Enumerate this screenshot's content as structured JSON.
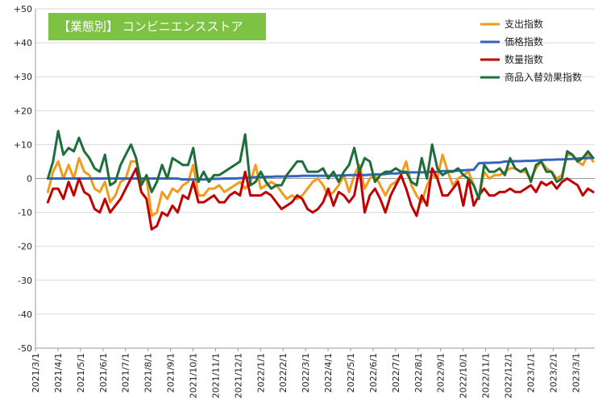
{
  "chart_data": {
    "type": "line",
    "title": "【業態別】 コンビニエンスストア",
    "ylim": [
      -50,
      50
    ],
    "y_ticks": [
      "+50",
      "+40",
      "+30",
      "+20",
      "+10",
      "0",
      "-10",
      "-20",
      "-30",
      "-40",
      "-50"
    ],
    "x_ticks": [
      "2021/3/1",
      "2021/4/1",
      "2021/5/1",
      "2021/6/1",
      "2021/7/1",
      "2021/8/1",
      "2021/9/1",
      "2021/10/1",
      "2021/11/1",
      "2021/12/1",
      "2022/1/1",
      "2022/2/1",
      "2022/3/1",
      "2022/4/1",
      "2022/5/1",
      "2022/6/1",
      "2022/7/1",
      "2022/8/1",
      "2022/9/1",
      "2022/10/1",
      "2022/11/1",
      "2022/12/1",
      "2023/1/1",
      "2023/2/1",
      "2023/3/1"
    ],
    "legend_position": "top-right",
    "series": [
      {
        "name": "支出指数",
        "color": "#f39a1c",
        "values": [
          -4,
          2,
          5,
          0,
          4,
          0,
          6,
          2,
          1,
          -3,
          -4,
          -1,
          -7,
          -5,
          -1,
          0,
          5,
          5,
          -1,
          0,
          -11,
          -10,
          -4,
          -6,
          -3,
          -4,
          -2,
          -1,
          4,
          -5,
          -5,
          -3,
          -3,
          -2,
          -4,
          -3,
          -2,
          -1,
          -3,
          -1,
          4,
          -3,
          -2,
          -1,
          -2,
          -4,
          -6,
          -5,
          -6,
          -5,
          -3,
          -1,
          0,
          -2,
          -5,
          -4,
          -2,
          1,
          -4,
          1,
          4,
          -3,
          0,
          1,
          -2,
          -5,
          -2,
          -1,
          1,
          5,
          -2,
          -5,
          -7,
          -2,
          1,
          0,
          7,
          2,
          -2,
          0,
          1,
          2,
          -2,
          -6,
          2,
          0,
          1,
          1,
          2,
          3,
          3,
          2,
          2,
          0,
          3,
          5,
          3,
          2,
          0,
          1,
          7,
          7,
          5,
          4,
          7,
          5
        ]
      },
      {
        "name": "価格指数",
        "color": "#3464c0",
        "values": [
          0,
          0,
          0,
          0,
          0,
          0,
          0,
          0,
          0,
          0,
          0,
          0,
          0,
          0,
          0,
          0,
          0,
          0,
          0,
          0,
          0,
          0,
          0,
          0,
          0,
          0,
          -0.3,
          -0.3,
          -0.3,
          -0.3,
          -0.3,
          -0.2,
          -0.1,
          -0.1,
          0,
          0,
          0,
          0.1,
          0.2,
          0.3,
          0.4,
          0.4,
          0.5,
          0.5,
          0.6,
          0.6,
          0.6,
          0.7,
          0.7,
          0.8,
          0.8,
          0.8,
          0.8,
          0.8,
          0.8,
          0.8,
          0.9,
          0.9,
          1,
          1,
          1,
          1,
          1.1,
          1.2,
          1.2,
          1.3,
          1.5,
          1.5,
          1.6,
          1.7,
          1.8,
          1.8,
          1.8,
          1.9,
          2,
          2,
          2.2,
          2.2,
          2.2,
          2.3,
          2.4,
          2.5,
          2.6,
          4.5,
          4.6,
          4.6,
          4.7,
          4.7,
          5,
          5,
          5.1,
          5.1,
          5.2,
          5.2,
          5.3,
          5.4,
          5.5,
          5.5,
          5.6,
          5.6,
          5.7,
          5.8,
          5.9,
          6,
          6,
          6.1
        ]
      },
      {
        "name": "数量指数",
        "color": "#c00000",
        "values": [
          -7,
          -3,
          -3,
          -6,
          -1,
          -5,
          0,
          -4,
          -5,
          -9,
          -10,
          -6,
          -10,
          -8,
          -6,
          -3,
          0,
          3,
          -4,
          -6,
          -15,
          -14,
          -10,
          -11,
          -8,
          -10,
          -5,
          -6,
          -1,
          -7,
          -7,
          -6,
          -5,
          -7,
          -7,
          -5,
          -4,
          -5,
          2,
          -5,
          -5,
          -5,
          -4,
          -5,
          -7,
          -9,
          -8,
          -7,
          -5,
          -6,
          -9,
          -10,
          -9,
          -7,
          -3,
          -8,
          -4,
          -5,
          -7,
          -5,
          3,
          -10,
          -5,
          -3,
          -6,
          -10,
          -5,
          -2,
          1,
          -3,
          -8,
          -11,
          -5,
          -8,
          3,
          0,
          -5,
          -5,
          -3,
          -1,
          -8,
          0,
          -8,
          -5,
          -3,
          -5,
          -5,
          -4,
          -4,
          -3,
          -4,
          -4,
          -3,
          -2,
          -4,
          -1,
          -2,
          -1,
          -3,
          -1,
          0,
          -1,
          -2,
          -5,
          -3,
          -4
        ]
      },
      {
        "name": "商品入替効果指数",
        "color": "#1d6e3a",
        "values": [
          0,
          5,
          14,
          7,
          9,
          8,
          12,
          8,
          6,
          3,
          2,
          7,
          -2,
          -1,
          4,
          7,
          10,
          6,
          -2,
          1,
          -4,
          -1,
          4,
          0,
          6,
          5,
          4,
          4,
          9,
          -1,
          2,
          -1,
          1,
          1,
          2,
          3,
          4,
          5,
          13,
          -2,
          -1,
          2,
          -1,
          -3,
          -2,
          -2,
          1,
          3,
          5,
          5,
          2,
          2,
          2,
          3,
          0,
          2,
          -1,
          2,
          4,
          9,
          2,
          6,
          5,
          -1,
          1,
          2,
          2,
          3,
          2,
          2,
          -1,
          -2,
          6,
          0,
          10,
          3,
          1,
          2,
          2,
          3,
          1,
          0,
          -2,
          -6,
          4,
          2,
          2,
          3,
          1,
          6,
          3,
          2,
          3,
          -1,
          4,
          5,
          2,
          2,
          -1,
          0,
          8,
          7,
          5,
          6,
          8,
          6
        ]
      }
    ]
  }
}
